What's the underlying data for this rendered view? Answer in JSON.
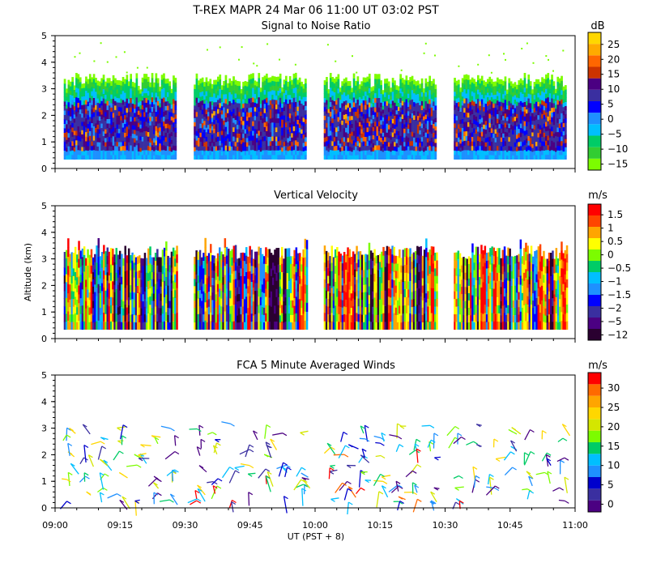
{
  "title_main": "T-REX   MAPR 24 Mar 06   11:00 UT   03:02   PST",
  "x_axis": {
    "label": "UT  (PST + 8)",
    "ticks": [
      "09:00",
      "09:15",
      "09:30",
      "09:45",
      "10:00",
      "10:15",
      "10:30",
      "10:45",
      "11:00"
    ]
  },
  "y_axis": {
    "label": "Altitude (km)",
    "ticks": [
      "0",
      "1",
      "2",
      "3",
      "4",
      "5"
    ]
  },
  "colors": {
    "snr": [
      "#7cfc00",
      "#32cd32",
      "#00cc66",
      "#00bfff",
      "#1e90ff",
      "#0000ff",
      "#3a2fa0",
      "#4b0082",
      "#cc3300",
      "#ff6600",
      "#ffaa00",
      "#ffd700"
    ],
    "vv": [
      "#2a0030",
      "#4b0082",
      "#3a2fa0",
      "#0000ff",
      "#1e90ff",
      "#00bfff",
      "#00cc66",
      "#7cfc00",
      "#ffff00",
      "#ffa500",
      "#ff4500",
      "#ff0000"
    ],
    "wind": [
      "#4b0082",
      "#3a2fa0",
      "#0000cd",
      "#1e90ff",
      "#00bfff",
      "#00cc66",
      "#7cfc00",
      "#d4e600",
      "#ffd700",
      "#ffa500",
      "#ff6a00",
      "#ff0000"
    ]
  },
  "chart_data": [
    {
      "type": "heatmap",
      "title": "Signal to Noise Ratio",
      "colorbar_unit": "dB",
      "colorbar_ticks": [
        "25",
        "20",
        "15",
        "10",
        "5",
        "0",
        "−5",
        "−10",
        "−15"
      ],
      "colorbar_range": [
        -15,
        25
      ],
      "ylim": [
        0,
        5
      ],
      "xlim": [
        "09:00",
        "11:00"
      ],
      "data_segments": [
        [
          "09:02",
          "09:28"
        ],
        [
          "09:32",
          "09:58"
        ],
        [
          "10:02",
          "10:28"
        ],
        [
          "10:32",
          "10:58"
        ]
      ],
      "data_altitude_range_km": [
        0.35,
        3.6
      ]
    },
    {
      "type": "heatmap",
      "title": "Vertical Velocity",
      "colorbar_unit": "m/s",
      "colorbar_ticks": [
        "1.5",
        "1",
        "0.5",
        "0",
        "−0.5",
        "−1",
        "−1.5",
        "−2",
        "−5",
        "−12"
      ],
      "ylim": [
        0,
        5
      ],
      "xlim": [
        "09:00",
        "11:00"
      ],
      "data_segments": [
        [
          "09:02",
          "09:28"
        ],
        [
          "09:32",
          "09:58"
        ],
        [
          "10:02",
          "10:28"
        ],
        [
          "10:32",
          "10:58"
        ]
      ],
      "data_altitude_range_km": [
        0.35,
        3.8
      ]
    },
    {
      "type": "scatter",
      "title": "FCA 5 Minute Averaged Winds",
      "colorbar_unit": "m/s",
      "colorbar_ticks": [
        "30",
        "25",
        "20",
        "15",
        "10",
        "5",
        "0"
      ],
      "colorbar_range": [
        0,
        30
      ],
      "ylim": [
        0,
        5
      ],
      "xlim": [
        "09:00",
        "11:00"
      ],
      "barb_columns_ut": [
        "09:03",
        "09:07",
        "09:11",
        "09:15",
        "09:19",
        "09:23",
        "09:27",
        "09:33",
        "09:37",
        "09:41",
        "09:45",
        "09:49",
        "09:53",
        "09:57",
        "10:03",
        "10:07",
        "10:11",
        "10:15",
        "10:19",
        "10:23",
        "10:27",
        "10:33",
        "10:37",
        "10:41",
        "10:45",
        "10:49",
        "10:53",
        "10:57"
      ],
      "altitude_range_km": [
        0.2,
        3.3
      ]
    }
  ]
}
